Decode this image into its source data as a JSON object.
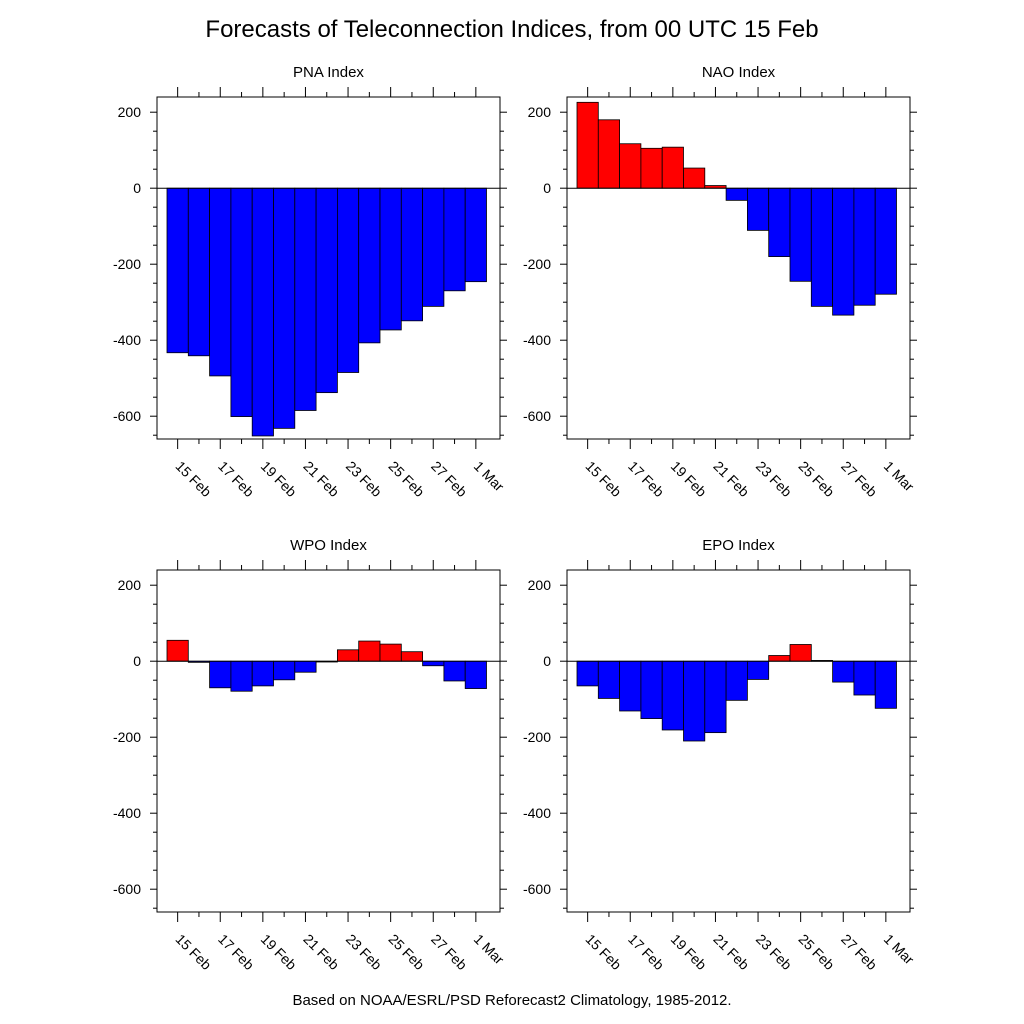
{
  "title": "Forecasts of Teleconnection Indices, from 00 UTC 15 Feb",
  "footer": "Based on NOAA/ESRL/PSD Reforecast2 Climatology, 1985-2012.",
  "colors": {
    "positive": "#ff0000",
    "negative": "#0000ff",
    "outline": "#000000"
  },
  "chart_data": [
    {
      "type": "bar",
      "title": "PNA Index",
      "categories": [
        "15 Feb",
        "16 Feb",
        "17 Feb",
        "18 Feb",
        "19 Feb",
        "20 Feb",
        "21 Feb",
        "22 Feb",
        "23 Feb",
        "24 Feb",
        "25 Feb",
        "26 Feb",
        "27 Feb",
        "28 Feb",
        "1 Mar"
      ],
      "values": [
        -433,
        -441,
        -494,
        -601,
        -652,
        -632,
        -585,
        -538,
        -485,
        -407,
        -373,
        -349,
        -311,
        -270,
        -246
      ],
      "ylim": [
        -660,
        240
      ],
      "yticks": [
        200,
        0,
        -200,
        -400,
        -600
      ],
      "xtick_labels": [
        "15 Feb",
        "17 Feb",
        "19 Feb",
        "21 Feb",
        "23 Feb",
        "25 Feb",
        "27 Feb",
        "1 Mar"
      ],
      "grid": false
    },
    {
      "type": "bar",
      "title": "NAO Index",
      "categories": [
        "15 Feb",
        "16 Feb",
        "17 Feb",
        "18 Feb",
        "19 Feb",
        "20 Feb",
        "21 Feb",
        "22 Feb",
        "23 Feb",
        "24 Feb",
        "25 Feb",
        "26 Feb",
        "27 Feb",
        "28 Feb",
        "1 Mar"
      ],
      "values": [
        226,
        180,
        117,
        105,
        108,
        53,
        7,
        -32,
        -111,
        -180,
        -245,
        -311,
        -334,
        -308,
        -279
      ],
      "ylim": [
        -660,
        240
      ],
      "yticks": [
        200,
        0,
        -200,
        -400,
        -600
      ],
      "xtick_labels": [
        "15 Feb",
        "17 Feb",
        "19 Feb",
        "21 Feb",
        "23 Feb",
        "25 Feb",
        "27 Feb",
        "1 Mar"
      ],
      "grid": false
    },
    {
      "type": "bar",
      "title": "WPO Index",
      "categories": [
        "15 Feb",
        "16 Feb",
        "17 Feb",
        "18 Feb",
        "19 Feb",
        "20 Feb",
        "21 Feb",
        "22 Feb",
        "23 Feb",
        "24 Feb",
        "25 Feb",
        "26 Feb",
        "27 Feb",
        "28 Feb",
        "1 Mar"
      ],
      "values": [
        55,
        -3,
        -70,
        -79,
        -65,
        -49,
        -29,
        0,
        30,
        53,
        45,
        25,
        -12,
        -52,
        -72
      ],
      "ylim": [
        -660,
        240
      ],
      "yticks": [
        200,
        0,
        -200,
        -400,
        -600
      ],
      "xtick_labels": [
        "15 Feb",
        "17 Feb",
        "19 Feb",
        "21 Feb",
        "23 Feb",
        "25 Feb",
        "27 Feb",
        "1 Mar"
      ],
      "grid": false
    },
    {
      "type": "bar",
      "title": "EPO Index",
      "categories": [
        "15 Feb",
        "16 Feb",
        "17 Feb",
        "18 Feb",
        "19 Feb",
        "20 Feb",
        "21 Feb",
        "22 Feb",
        "23 Feb",
        "24 Feb",
        "25 Feb",
        "26 Feb",
        "27 Feb",
        "28 Feb",
        "1 Mar"
      ],
      "values": [
        -65,
        -98,
        -131,
        -151,
        -181,
        -210,
        -188,
        -103,
        -48,
        15,
        44,
        2,
        -55,
        -89,
        -124
      ],
      "ylim": [
        -660,
        240
      ],
      "yticks": [
        200,
        0,
        -200,
        -400,
        -600
      ],
      "xtick_labels": [
        "15 Feb",
        "17 Feb",
        "19 Feb",
        "21 Feb",
        "23 Feb",
        "25 Feb",
        "27 Feb",
        "1 Mar"
      ],
      "grid": false
    }
  ]
}
